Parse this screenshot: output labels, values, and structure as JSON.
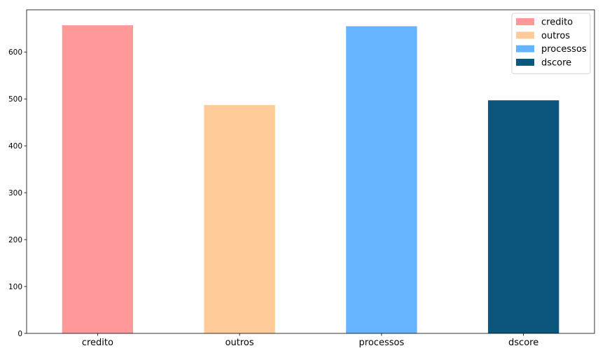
{
  "chart_data": {
    "type": "bar",
    "title": "",
    "xlabel": "",
    "ylabel": "",
    "categories": [
      "credito",
      "outros",
      "processos",
      "dscore"
    ],
    "values": [
      657,
      487,
      655,
      497
    ],
    "colors": [
      "#ff9999",
      "#ffcc99",
      "#66b3ff",
      "#0c557c"
    ],
    "ylim": [
      0,
      690
    ],
    "yticks": [
      0,
      100,
      200,
      300,
      400,
      500,
      600
    ],
    "grid": false,
    "legend": {
      "placement": "top-right",
      "entries": [
        "credito",
        "outros",
        "processos",
        "dscore"
      ]
    }
  }
}
